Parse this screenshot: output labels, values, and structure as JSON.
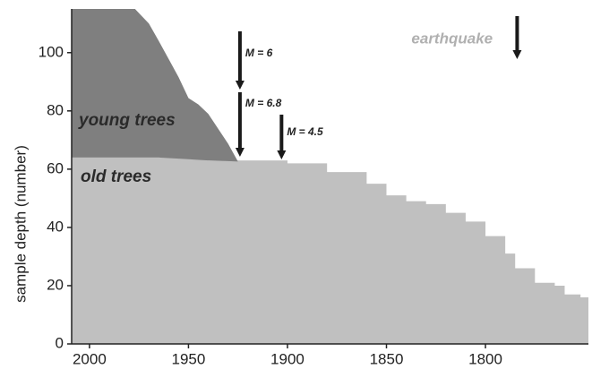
{
  "chart_data": {
    "type": "area",
    "ylabel": "sample depth (number)",
    "xlim": [
      2009,
      1748
    ],
    "ylim": [
      0,
      115
    ],
    "xticks": [
      2000,
      1950,
      1900,
      1850,
      1800
    ],
    "yticks": [
      0,
      20,
      40,
      60,
      80,
      100
    ],
    "series": [
      {
        "name": "old trees",
        "color": "#c0c0c0",
        "x": [
          2009,
          1965,
          1940,
          1900,
          1880,
          1860,
          1850,
          1840,
          1830,
          1820,
          1810,
          1800,
          1790,
          1785,
          1775,
          1765,
          1760,
          1752
        ],
        "values": [
          64,
          64,
          63,
          62,
          59,
          55,
          51,
          49,
          48,
          45,
          42,
          37,
          31,
          26,
          21,
          20,
          17,
          16
        ]
      },
      {
        "name": "young trees",
        "color": "#7f7f7f",
        "x": [
          2009,
          1977,
          1970,
          1965,
          1960,
          1955,
          1950,
          1945,
          1940,
          1935,
          1930,
          1925
        ],
        "values": [
          51,
          51,
          46,
          40,
          34,
          28,
          21,
          19,
          16,
          11,
          6,
          0
        ]
      }
    ],
    "annotations": [
      {
        "text": "M = 6",
        "x": 1924
      },
      {
        "text": "M = 6.8",
        "x": 1924
      },
      {
        "text": "M = 4.5",
        "x": 1903
      },
      {
        "text": "earthquake",
        "x": 1784
      }
    ]
  }
}
